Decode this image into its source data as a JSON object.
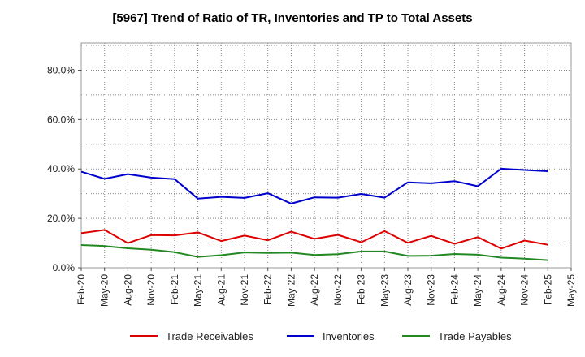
{
  "chart_data": {
    "type": "line",
    "title": "[5967]  Trend of Ratio of TR, Inventories and TP to Total Assets",
    "xlabel": "",
    "ylabel": "",
    "x_tick_labels": [
      "Feb-20",
      "May-20",
      "Aug-20",
      "Nov-20",
      "Feb-21",
      "May-21",
      "Aug-21",
      "Nov-21",
      "Feb-22",
      "May-22",
      "Aug-22",
      "Nov-22",
      "Feb-23",
      "May-23",
      "Aug-23",
      "Nov-23",
      "Feb-24",
      "May-24",
      "Aug-24",
      "Nov-24",
      "Feb-25",
      "May-25"
    ],
    "y_tick_labels": [
      "0.0%",
      "20.0%",
      "40.0%",
      "60.0%",
      "80.0%"
    ],
    "y_ticks": [
      0,
      20,
      40,
      60,
      80
    ],
    "ylim": [
      0,
      91
    ],
    "x_count": 22,
    "grid": true,
    "legend_position": "bottom",
    "series": [
      {
        "name": "Trade Receivables",
        "color": "#dd0000",
        "values": [
          14.0,
          15.3,
          10.0,
          13.2,
          13.1,
          14.3,
          10.8,
          13.0,
          11.1,
          14.6,
          11.7,
          13.3,
          10.3,
          14.8,
          10.1,
          12.9,
          9.7,
          12.4,
          7.8,
          11.0,
          9.3
        ]
      },
      {
        "name": "Inventories",
        "color": "#0000cc",
        "values": [
          38.9,
          36.0,
          37.9,
          36.5,
          35.9,
          28.0,
          28.7,
          28.3,
          30.2,
          26.0,
          28.5,
          28.4,
          29.9,
          28.4,
          34.6,
          34.2,
          35.1,
          33.0,
          40.1,
          39.6,
          39.1
        ]
      },
      {
        "name": "Trade Payables",
        "color": "#228822",
        "values": [
          9.2,
          8.8,
          7.9,
          7.3,
          6.3,
          4.4,
          5.1,
          6.2,
          6.0,
          6.1,
          5.2,
          5.5,
          6.6,
          6.6,
          4.8,
          4.9,
          5.6,
          5.3,
          4.1,
          3.7,
          3.1
        ]
      }
    ]
  }
}
